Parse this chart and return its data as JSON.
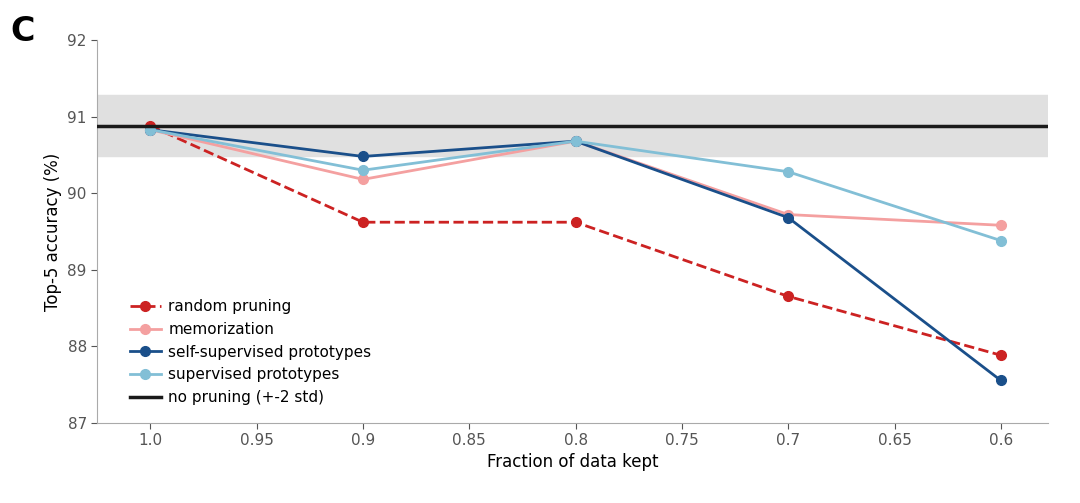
{
  "x": [
    1.0,
    0.9,
    0.8,
    0.7,
    0.6
  ],
  "random_pruning": [
    90.88,
    89.62,
    89.62,
    88.65,
    87.88
  ],
  "memorization": [
    90.83,
    90.18,
    90.68,
    89.72,
    89.58
  ],
  "self_supervised": [
    90.83,
    90.48,
    90.68,
    89.68,
    87.55
  ],
  "supervised": [
    90.83,
    90.3,
    90.68,
    90.28,
    89.38
  ],
  "no_pruning_line": 90.88,
  "no_pruning_band_low": 90.48,
  "no_pruning_band_high": 91.28,
  "random_pruning_color": "#cc2222",
  "memorization_color": "#f4a0a0",
  "self_supervised_color": "#1a4f8a",
  "supervised_color": "#82bfd6",
  "no_pruning_color": "#1a1a1a",
  "band_color": "#e0e0e0",
  "ylabel": "Top-5 accuracy (%)",
  "xlabel": "Fraction of data kept",
  "ylim": [
    87.0,
    92.0
  ],
  "xlim_left": 1.025,
  "xlim_right": 0.578,
  "yticks": [
    87,
    88,
    89,
    90,
    91,
    92
  ],
  "xticks": [
    1.0,
    0.95,
    0.9,
    0.85,
    0.8,
    0.75,
    0.7,
    0.65,
    0.6
  ],
  "xtick_labels": [
    "1.0",
    "0.95",
    "0.9",
    "0.85",
    "0.8",
    "0.75",
    "0.7",
    "0.65",
    "0.6"
  ],
  "panel_label": "C",
  "legend_labels": [
    "random pruning",
    "memorization",
    "self-supervised prototypes",
    "supervised prototypes",
    "no pruning (+-2 std)"
  ],
  "bg_color": "#ffffff",
  "plot_bg_color": "#ffffff",
  "spine_color": "#aaaaaa",
  "tick_label_fontsize": 11,
  "axis_label_fontsize": 12,
  "legend_fontsize": 11,
  "panel_label_fontsize": 24,
  "linewidth": 2.0,
  "markersize": 7,
  "no_pruning_linewidth": 2.5
}
